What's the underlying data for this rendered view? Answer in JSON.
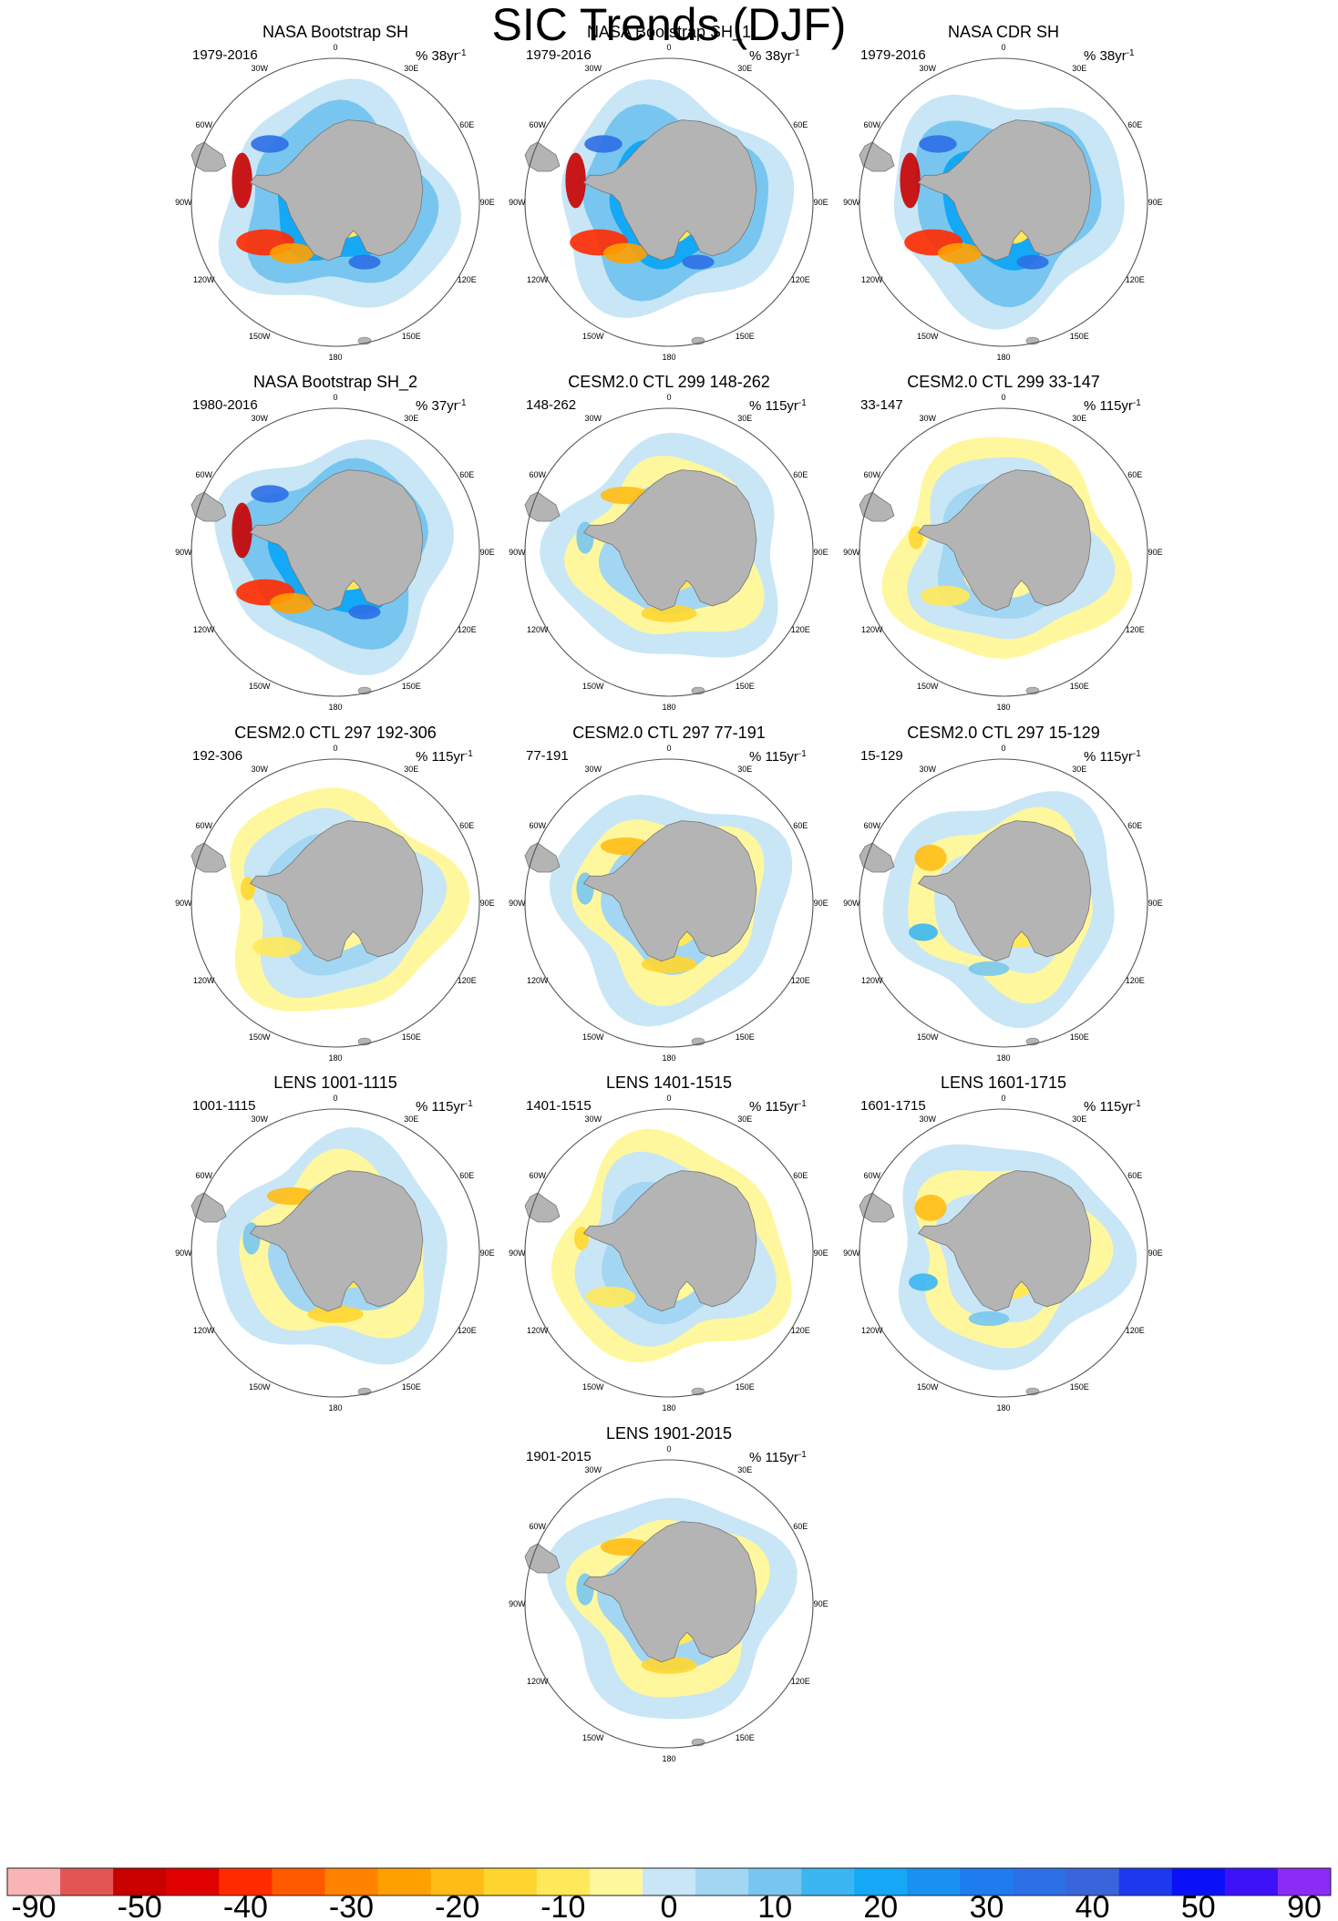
{
  "title": "SIC Trends (DJF)",
  "lon_labels": [
    "0",
    "30E",
    "60E",
    "90E",
    "120E",
    "150E",
    "180",
    "150W",
    "120W",
    "90W",
    "60W",
    "30W"
  ],
  "colors": {
    "land": "#b4b4b4",
    "coast": "#777777",
    "ring": "#555555"
  },
  "colorbar": {
    "colors": [
      "#f9b5b5",
      "#e35555",
      "#c80000",
      "#e10000",
      "#ff2a00",
      "#ff5a00",
      "#ff8200",
      "#ffa000",
      "#ffbc16",
      "#ffd630",
      "#ffe95a",
      "#fff79e",
      "#c8e6f6",
      "#a3d6f2",
      "#78c6ef",
      "#3cb6f2",
      "#14a8f6",
      "#1891f2",
      "#1e7bf0",
      "#2c6fe6",
      "#3a64dc",
      "#1c39f0",
      "#0a10f8",
      "#3e12f8",
      "#8a2cf5"
    ],
    "labels": [
      "-90",
      "-50",
      "-40",
      "-30",
      "-20",
      "-10",
      "0",
      "10",
      "20",
      "30",
      "40",
      "50",
      "90"
    ]
  },
  "panels": [
    {
      "title": "NASA Bootstrap SH",
      "period": "1979-2016",
      "units": "% 38yr",
      "sup": "-1",
      "type": "obs"
    },
    {
      "title": "NASA Bootstrap SH_1",
      "period": "1979-2016",
      "units": "% 38yr",
      "sup": "-1",
      "type": "obs"
    },
    {
      "title": "NASA CDR SH",
      "period": "1979-2016",
      "units": "% 38yr",
      "sup": "-1",
      "type": "obs"
    },
    {
      "title": "NASA Bootstrap SH_2",
      "period": "1980-2016",
      "units": "% 37yr",
      "sup": "-1",
      "type": "obs"
    },
    {
      "title": "CESM2.0 CTL 299 148-262",
      "period": "148-262",
      "units": "% 115yr",
      "sup": "-1",
      "type": "model_warm"
    },
    {
      "title": "CESM2.0 CTL 299 33-147",
      "period": "33-147",
      "units": "% 115yr",
      "sup": "-1",
      "type": "model_cool"
    },
    {
      "title": "CESM2.0 CTL 297 192-306",
      "period": "192-306",
      "units": "% 115yr",
      "sup": "-1",
      "type": "model_cool"
    },
    {
      "title": "CESM2.0 CTL 297 77-191",
      "period": "77-191",
      "units": "% 115yr",
      "sup": "-1",
      "type": "model_warm"
    },
    {
      "title": "CESM2.0 CTL 297 15-129",
      "period": "15-129",
      "units": "% 115yr",
      "sup": "-1",
      "type": "model_mixed"
    },
    {
      "title": "LENS 1001-1115",
      "period": "1001-1115",
      "units": "% 115yr",
      "sup": "-1",
      "type": "model_warm"
    },
    {
      "title": "LENS 1401-1515",
      "period": "1401-1515",
      "units": "% 115yr",
      "sup": "-1",
      "type": "model_cool"
    },
    {
      "title": "LENS 1601-1715",
      "period": "1601-1715",
      "units": "% 115yr",
      "sup": "-1",
      "type": "model_mixed"
    },
    {
      "title": "LENS 1901-2015",
      "period": "1901-2015",
      "units": "% 115yr",
      "sup": "-1",
      "type": "model_warm"
    }
  ]
}
